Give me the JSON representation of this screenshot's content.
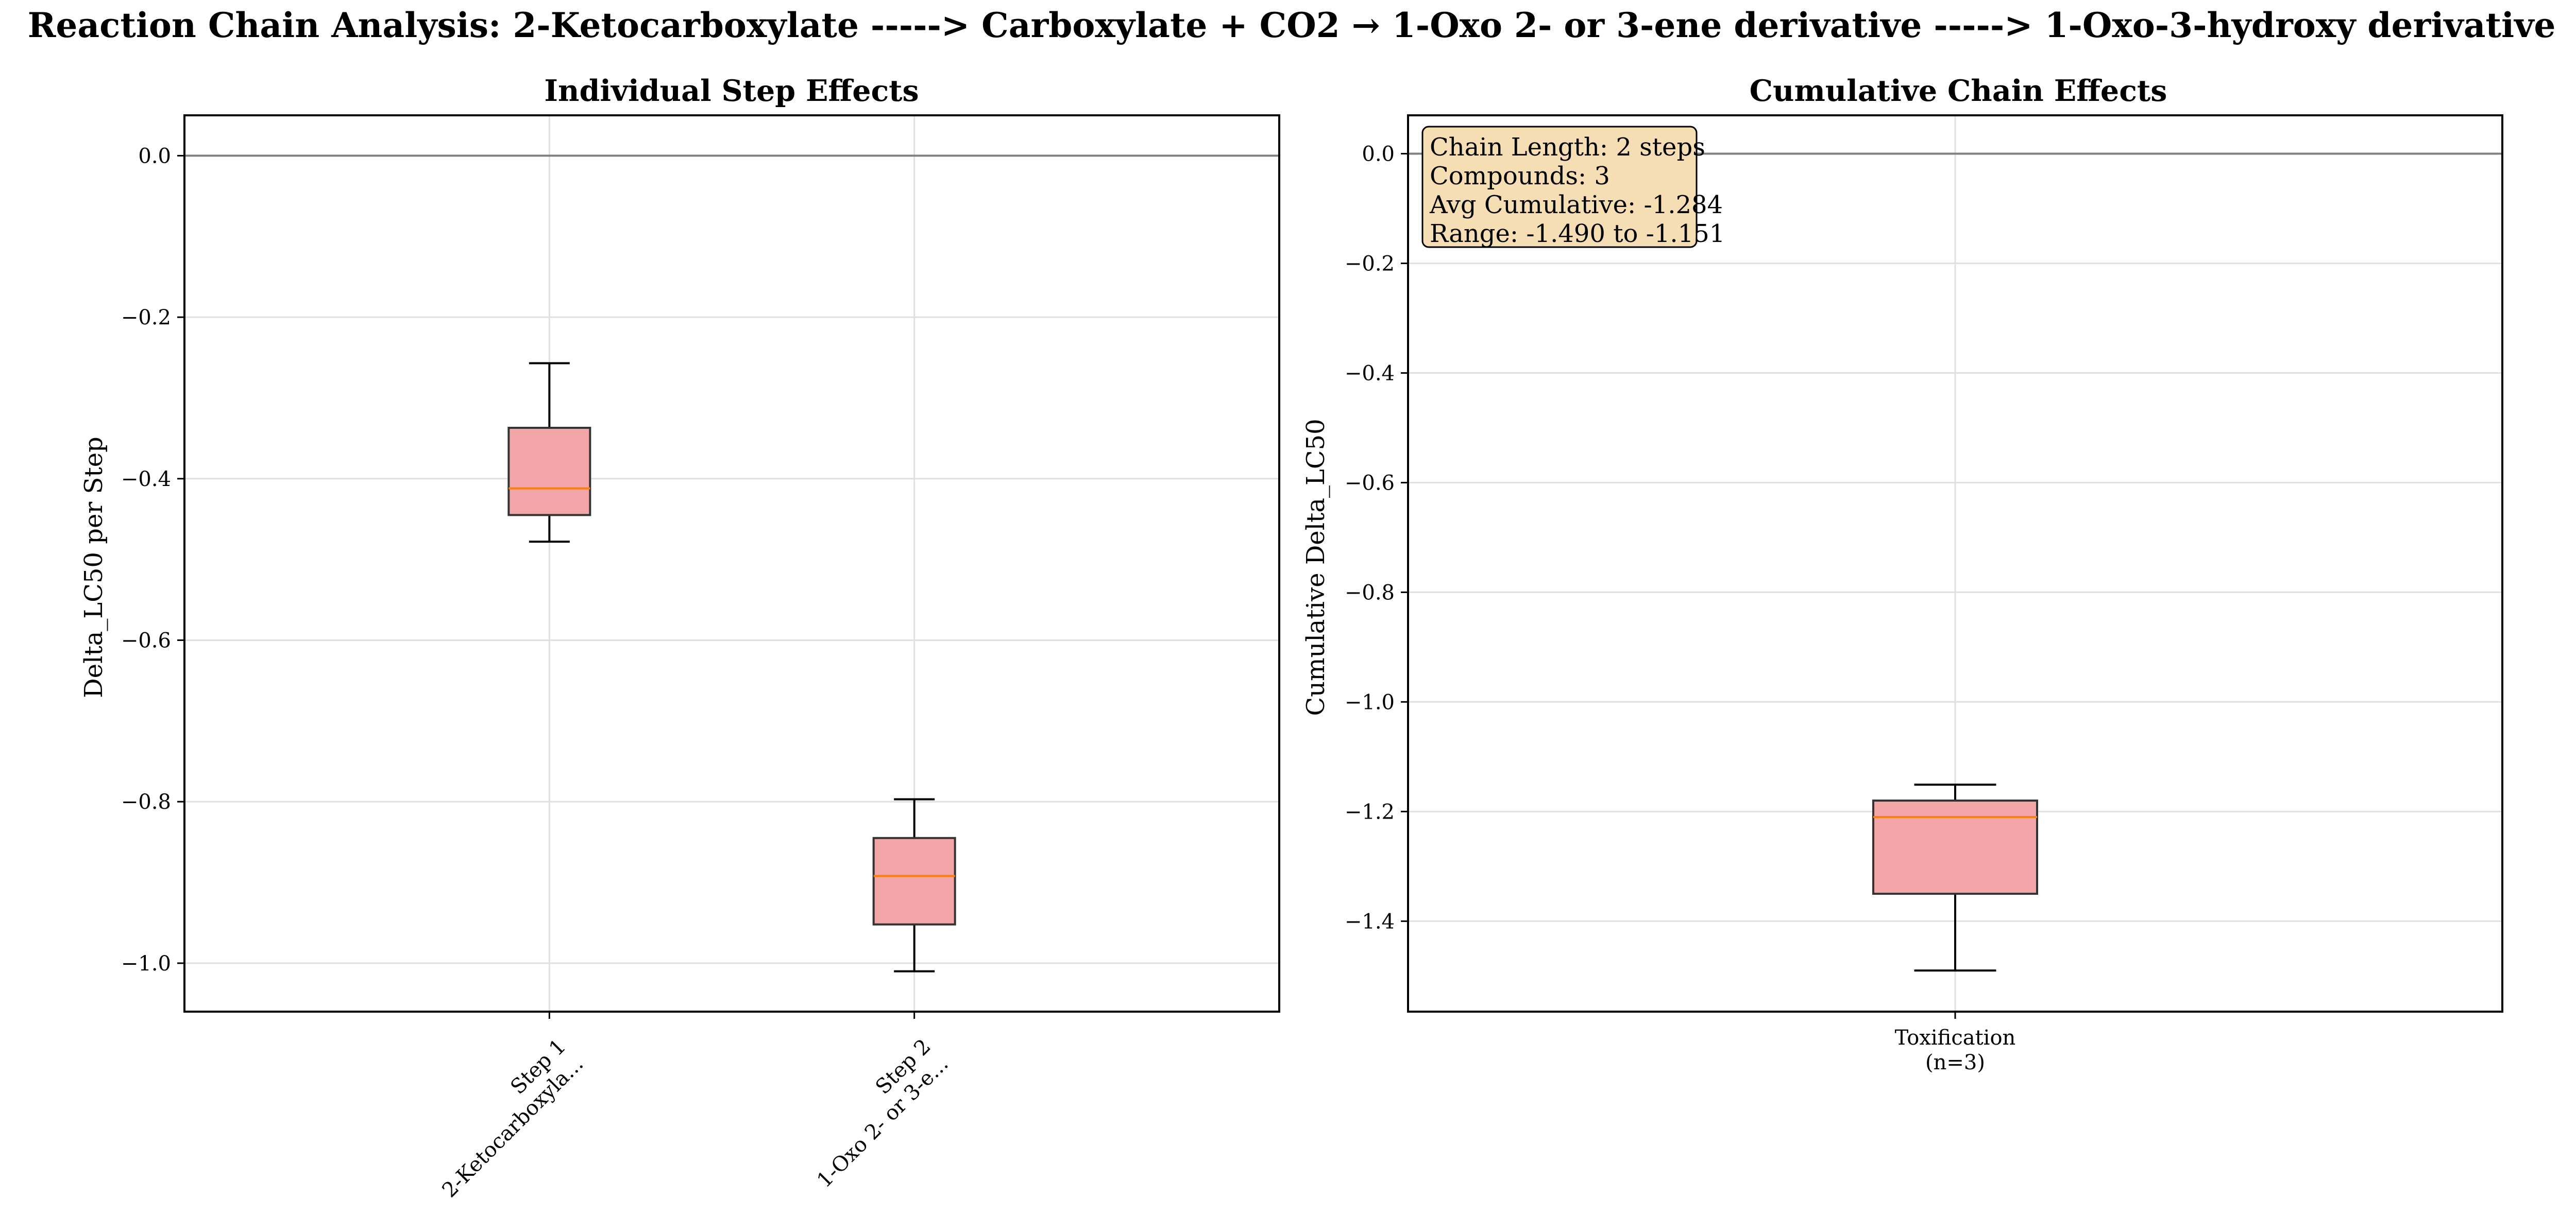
{
  "figure": {
    "suptitle": "Reaction Chain Analysis: 2-Ketocarboxylate -----> Carboxylate + CO2 → 1-Oxo 2- or 3-ene derivative -----> 1-Oxo-3-hydroxy derivative"
  },
  "colors": {
    "box_fill": "#f4a5a7",
    "median": "#ff7f0e",
    "grid": "#e0e0e0",
    "zero_line": "#808080",
    "stats_box_fill": "#f5deb3"
  },
  "chart_data": [
    {
      "type": "box",
      "title": "Individual Step Effects",
      "xlabel": "",
      "ylabel": "Delta_LC50 per Step",
      "ylim": [
        -1.06,
        0.05
      ],
      "yticks": [
        0.0,
        -0.2,
        -0.4,
        -0.6,
        -0.8,
        -1.0
      ],
      "ytick_labels": [
        "0.0",
        "−0.2",
        "−0.4",
        "−0.6",
        "−0.8",
        "−1.0"
      ],
      "grid": true,
      "reference_line_y": 0.0,
      "categories": [
        {
          "line1": "Step 1",
          "line2": "2-Ketocarboxyla..."
        },
        {
          "line1": "Step 2",
          "line2": "1-Oxo 2- or 3-e..."
        }
      ],
      "tick_rotation": "45",
      "boxes": [
        {
          "whisker_low": -0.478,
          "q1": -0.445,
          "median": -0.412,
          "q3": -0.337,
          "whisker_high": -0.257
        },
        {
          "whisker_low": -1.01,
          "q1": -0.952,
          "median": -0.892,
          "q3": -0.845,
          "whisker_high": -0.797
        }
      ]
    },
    {
      "type": "box",
      "title": "Cumulative Chain Effects",
      "xlabel": "",
      "ylabel": "Cumulative Delta_LC50",
      "ylim": [
        -1.565,
        0.07
      ],
      "yticks": [
        0.0,
        -0.2,
        -0.4,
        -0.6,
        -0.8,
        -1.0,
        -1.2,
        -1.4
      ],
      "ytick_labels": [
        "0.0",
        "−0.2",
        "−0.4",
        "−0.6",
        "−0.8",
        "−1.0",
        "−1.2",
        "−1.4"
      ],
      "grid": true,
      "reference_line_y": 0.0,
      "categories": [
        {
          "line1": "Toxification",
          "line2": "(n=3)"
        }
      ],
      "tick_rotation": "0",
      "boxes": [
        {
          "whisker_low": -1.49,
          "q1": -1.35,
          "median": -1.21,
          "q3": -1.18,
          "whisker_high": -1.151
        }
      ],
      "annotation": {
        "placement": "top-left",
        "lines": [
          "Chain Length: 2 steps",
          "Compounds: 3",
          "Avg Cumulative: -1.284",
          "Range: -1.490 to -1.151"
        ]
      }
    }
  ]
}
